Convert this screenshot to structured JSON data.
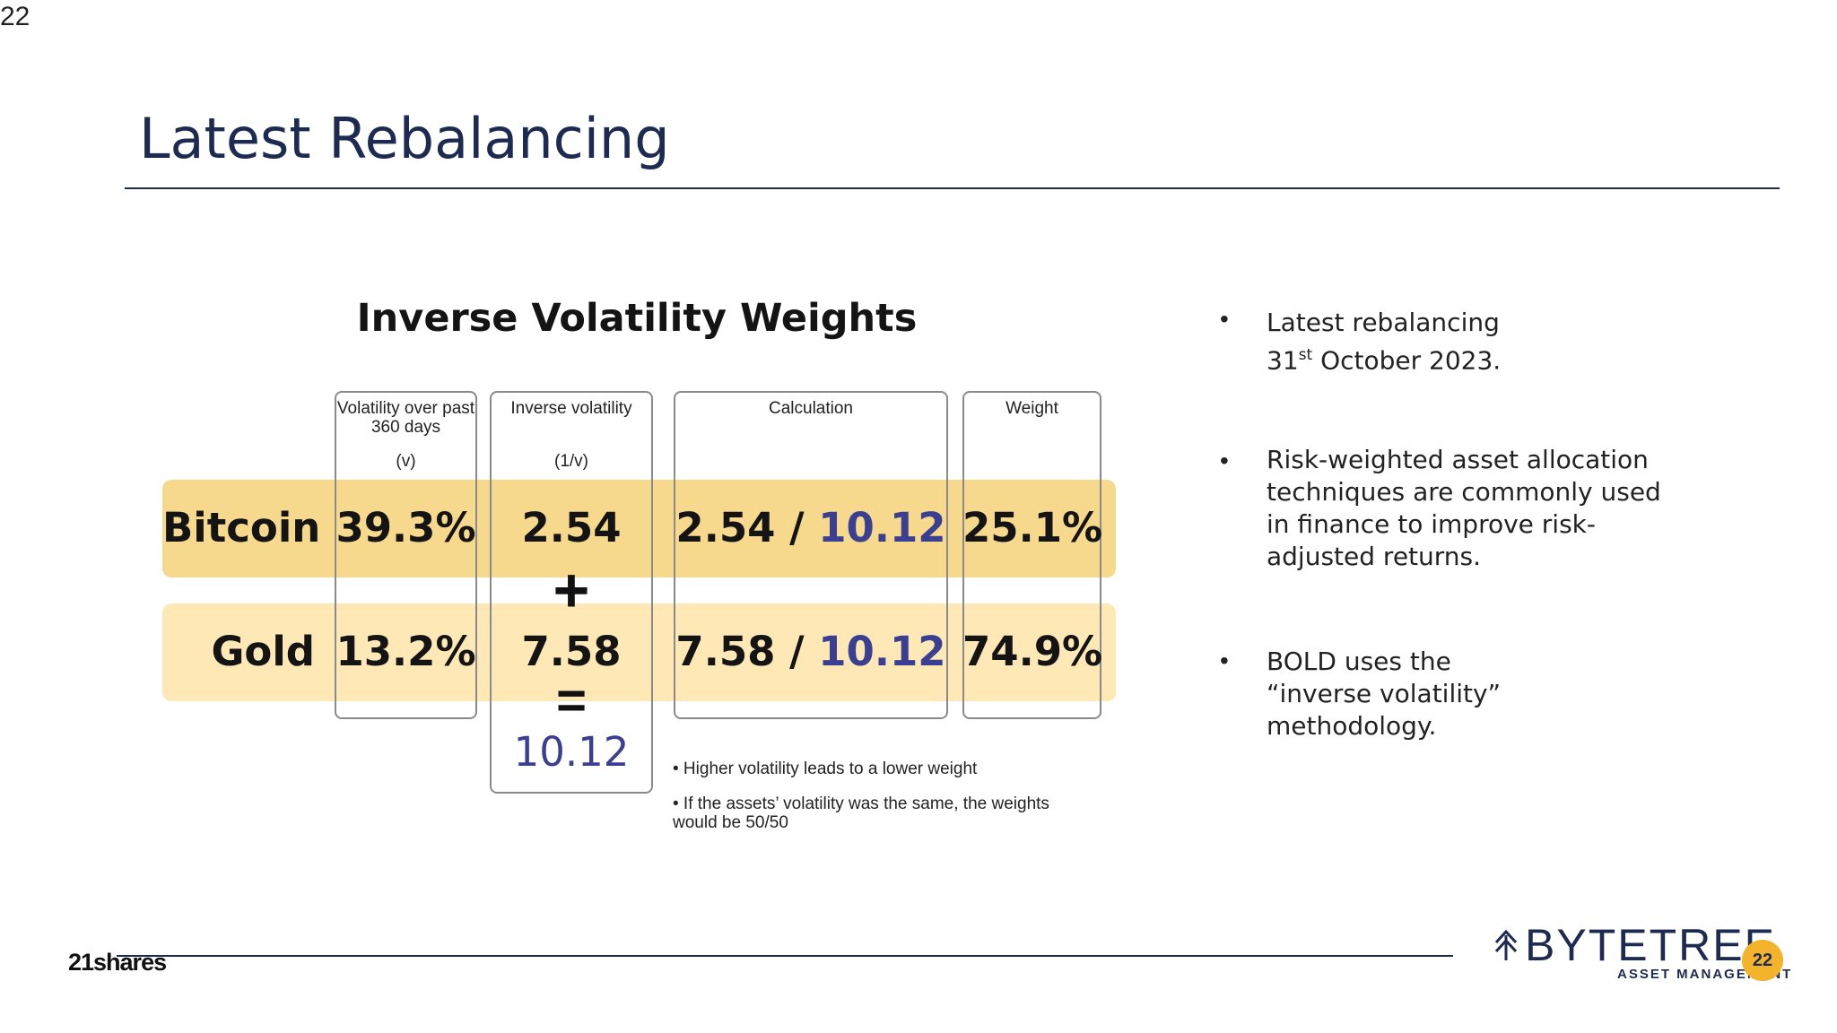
{
  "page_number": "22",
  "title": "Latest Rebalancing",
  "chart": {
    "title": "Inverse Volatility Weights",
    "headers": {
      "volatility": "Volatility over past 360 days",
      "volatility_sub": "(v)",
      "inverse": "Inverse volatility",
      "inverse_sub": "(1/v)",
      "calculation": "Calculation",
      "weight": "Weight"
    },
    "rows": [
      {
        "asset": "Bitcoin",
        "volatility": "39.3%",
        "inverse": "2.54",
        "calc_num": "2.54 /",
        "calc_den": "10.12",
        "weight": "25.1%"
      },
      {
        "asset": "Gold",
        "volatility": "13.2%",
        "inverse": "7.58",
        "calc_num": "7.58 /",
        "calc_den": "10.12",
        "weight": "74.9%"
      }
    ],
    "plus": "+",
    "equals": "=",
    "total": "10.12",
    "notes": [
      "• Higher volatility leads to a lower weight",
      "• If the assets’ volatility was the same, the weights would be 50/50"
    ],
    "colors": {
      "bitcoin_band": "#f7d98d",
      "gold_band": "#fde8b6",
      "total_text": "#3a3f91"
    }
  },
  "bullets": {
    "marker": "•",
    "b1_line1": "Latest rebalancing",
    "b1_day": "31",
    "b1_suffix": "st",
    "b1_rest": " October 2023.",
    "b2": "Risk-weighted asset allocation techniques are commonly used in finance to improve risk-adjusted returns.",
    "b3": "BOLD uses the “inverse volatility” methodology."
  },
  "footer": {
    "logo_left": "21shares",
    "logo_right_name": "BYTETREE",
    "logo_right_sub": "ASSET MANAGEMENT",
    "badge": "22",
    "colors": {
      "brand_navy": "#1d2b52",
      "badge_gold": "#f3b32b"
    }
  }
}
